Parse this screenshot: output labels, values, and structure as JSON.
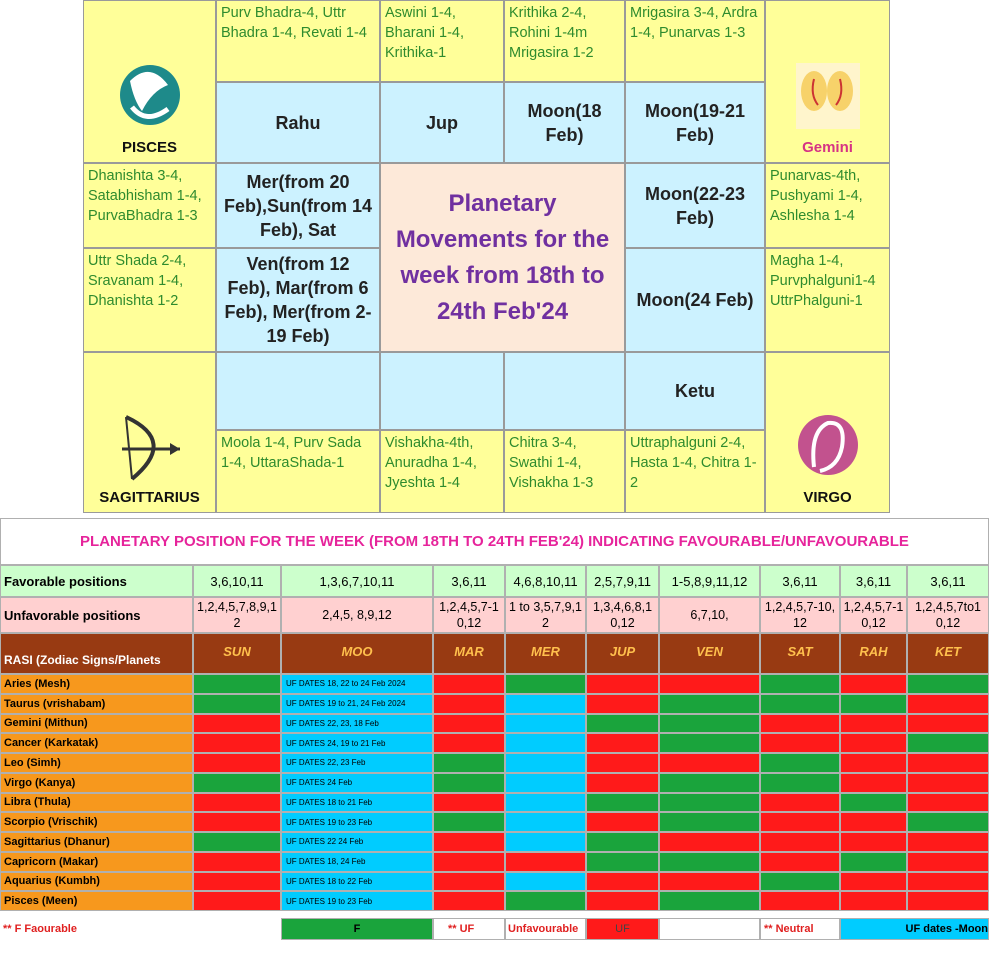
{
  "top_grid": {
    "center_title": "Planetary Movements for the week from 18th to 24th Feb'24",
    "signs": [
      "PISCES",
      "Gemini",
      "SAGITTARIUS",
      "VIRGO"
    ],
    "cells": [
      "Purv Bhadra-4, Uttr Bhadra 1-4, Revati 1-4",
      "Aswini 1-4, Bharani 1-4, Krithika-1",
      "Krithika 2-4, Rohini 1-4m Mrigasira 1-2",
      "Mrigasira 3-4, Ardra 1-4, Punarvas 1-3",
      "Rahu",
      "Jup",
      "Moon(18 Feb)",
      "Moon(19-21 Feb)",
      "Dhanishta 3-4, Satabhisham 1-4, PurvaBhadra 1-3",
      "Mer(from 20 Feb),Sun(from 14 Feb), Sat",
      "Moon(22-23 Feb)",
      "Punarvas-4th, Pushyami 1-4, Ashlesha 1-4",
      "Uttr Shada 2-4, Sravanam 1-4, Dhanishta 1-2",
      "Ven(from 12 Feb), Mar(from 6 Feb), Mer(from 2-19 Feb)",
      "Moon(24 Feb)",
      "Magha 1-4, Purvphalguni1-4 UttrPhalguni-1",
      "Ketu",
      "Moola 1-4, Purv Sada 1-4, UttaraShada-1",
      "Vishakha-4th, Anuradha 1-4, Jyeshta 1-4",
      "Chitra 3-4, Swathi 1-4, Vishakha 1-3",
      "Uttraphalguni 2-4, Hasta 1-4, Chitra 1-2"
    ]
  },
  "table": {
    "title": "PLANETARY POSITION FOR THE WEEK (FROM 18TH TO 24TH  FEB'24) INDICATING FAVOURABLE/UNFAVOURABLE",
    "favorable_label": "Favorable positions",
    "favorable": [
      "3,6,10,11",
      "1,3,6,7,10,11",
      "3,6,11",
      "4,6,8,10,11",
      "2,5,7,9,11",
      "1-5,8,9,11,12",
      "3,6,11",
      "3,6,11",
      "3,6,11"
    ],
    "unfavorable_label": "Unfavorable positions",
    "unfavorable": [
      "1,2,4,5,7,8,9,12",
      "2,4,5, 8,9,12",
      "1,2,4,5,7-10,12",
      "1 to 3,5,7,9,12",
      "1,3,4,6,8,10,12",
      "6,7,10,",
      "1,2,4,5,7-10,12",
      "1,2,4,5,7-10,12",
      "1,2,4,5,7to10,12"
    ],
    "header_label": "RASI (Zodiac Signs/Planets",
    "planets": [
      "SUN",
      "MOO",
      "MAR",
      "MER",
      "JUP",
      "VEN",
      "SAT",
      "RAH",
      "KET"
    ],
    "rows": [
      {
        "sign": "Aries (Mesh)",
        "moon_note": "UF DATES 18, 22 to 24 Feb 2024",
        "colors": [
          "#1aa43c",
          "#00ccff",
          "#ff1a1a",
          "#1aa43c",
          "#ff1a1a",
          "#ff1a1a",
          "#1aa43c",
          "#ff1a1a",
          "#1aa43c"
        ]
      },
      {
        "sign": "Taurus (vrishabam)",
        "moon_note": "UF DATES 19 to 21, 24 Feb 2024",
        "colors": [
          "#1aa43c",
          "#00ccff",
          "#ff1a1a",
          "#00ccff",
          "#ff1a1a",
          "#1aa43c",
          "#1aa43c",
          "#1aa43c",
          "#ff1a1a"
        ]
      },
      {
        "sign": "Gemini (Mithun)",
        "moon_note": "UF DATES 22, 23, 18 Feb",
        "colors": [
          "#ff1a1a",
          "#00ccff",
          "#ff1a1a",
          "#00ccff",
          "#1aa43c",
          "#1aa43c",
          "#ff1a1a",
          "#ff1a1a",
          "#ff1a1a"
        ]
      },
      {
        "sign": "Cancer (Karkatak)",
        "moon_note": "UF DATES 24, 19 to 21 Feb",
        "colors": [
          "#ff1a1a",
          "#00ccff",
          "#ff1a1a",
          "#00ccff",
          "#ff1a1a",
          "#1aa43c",
          "#ff1a1a",
          "#ff1a1a",
          "#1aa43c"
        ]
      },
      {
        "sign": "Leo (Simh)",
        "moon_note": "UF DATES 22, 23 Feb",
        "colors": [
          "#ff1a1a",
          "#00ccff",
          "#1aa43c",
          "#00ccff",
          "#ff1a1a",
          "#ff1a1a",
          "#1aa43c",
          "#ff1a1a",
          "#ff1a1a"
        ]
      },
      {
        "sign": "Virgo (Kanya)",
        "moon_note": "UF DATES 24 Feb",
        "colors": [
          "#1aa43c",
          "#00ccff",
          "#1aa43c",
          "#00ccff",
          "#ff1a1a",
          "#1aa43c",
          "#1aa43c",
          "#ff1a1a",
          "#ff1a1a"
        ]
      },
      {
        "sign": "Libra (Thula)",
        "moon_note": "UF DATES 18 to 21 Feb",
        "colors": [
          "#ff1a1a",
          "#00ccff",
          "#ff1a1a",
          "#00ccff",
          "#1aa43c",
          "#1aa43c",
          "#ff1a1a",
          "#1aa43c",
          "#ff1a1a"
        ]
      },
      {
        "sign": "Scorpio (Vrischik)",
        "moon_note": "UF DATES 19 to 23 Feb",
        "colors": [
          "#ff1a1a",
          "#00ccff",
          "#1aa43c",
          "#00ccff",
          "#ff1a1a",
          "#1aa43c",
          "#ff1a1a",
          "#ff1a1a",
          "#1aa43c"
        ]
      },
      {
        "sign": "Sagittarius (Dhanur)",
        "moon_note": "UF DATES 22 24 Feb",
        "colors": [
          "#1aa43c",
          "#00ccff",
          "#ff1a1a",
          "#00ccff",
          "#1aa43c",
          "#ff1a1a",
          "#ff1a1a",
          "#ff1a1a",
          "#ff1a1a"
        ]
      },
      {
        "sign": "Capricorn (Makar)",
        "moon_note": "UF DATES 18, 24 Feb",
        "colors": [
          "#ff1a1a",
          "#00ccff",
          "#ff1a1a",
          "#ff1a1a",
          "#1aa43c",
          "#1aa43c",
          "#ff1a1a",
          "#1aa43c",
          "#ff1a1a"
        ]
      },
      {
        "sign": "Aquarius (Kumbh)",
        "moon_note": "UF DATES 18 to 22 Feb",
        "colors": [
          "#ff1a1a",
          "#00ccff",
          "#ff1a1a",
          "#00ccff",
          "#ff1a1a",
          "#ff1a1a",
          "#1aa43c",
          "#ff1a1a",
          "#ff1a1a"
        ]
      },
      {
        "sign": "Pisces (Meen)",
        "moon_note": "UF DATES 19 to 23 Feb",
        "colors": [
          "#ff1a1a",
          "#00ccff",
          "#ff1a1a",
          "#1aa43c",
          "#ff1a1a",
          "#1aa43c",
          "#ff1a1a",
          "#ff1a1a",
          "#ff1a1a"
        ]
      }
    ],
    "legend": {
      "f_note": "**  F   Faourable",
      "f_cell": "F",
      "uf_note": "** UF",
      "uf_text": "Unfavourable",
      "uf_cell": "UF",
      "neutral_note": "** Neutral",
      "moon_cell": "UF dates -Moon",
      "colors": {
        "f": "#1aa43c",
        "uf": "#ff1a1a",
        "moon": "#00ccff"
      }
    }
  }
}
